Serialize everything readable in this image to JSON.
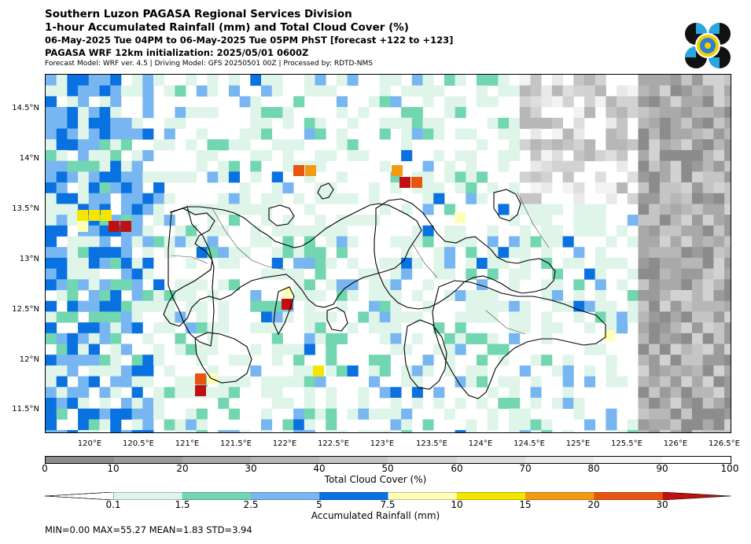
{
  "header": {
    "line1": "Southern Luzon PAGASA Regional Services Division",
    "line2": "1-hour Accumulated Rainfall (mm) and Total Cloud Cover (%)",
    "line3": "06-May-2025 Tue 04PM to 06-May-2025 Tue 05PM PhST [forecast +122 to +123]",
    "line4": "PAGASA WRF 12km initialization: 2025/05/01 0600Z",
    "line5": "Forecast Model: WRF ver. 4.5 | Driving Model: GFS 20250501 00Z | Processed by: RDTD-NMS"
  },
  "map": {
    "lat_labels": [
      "14.5°N",
      "14°N",
      "13.5°N",
      "13°N",
      "12.5°N",
      "12°N",
      "11.5°N"
    ],
    "lon_labels": [
      "120°E",
      "120.5°E",
      "121°E",
      "121.5°E",
      "122°E",
      "122.5°E",
      "123°E",
      "123.5°E",
      "124°E",
      "124.5°E",
      "125°E",
      "125.5°E",
      "126°E",
      "126.5°E"
    ]
  },
  "cloud_legend": {
    "ticks": [
      "0",
      "10",
      "20",
      "30",
      "40",
      "50",
      "60",
      "70",
      "80",
      "90",
      "100"
    ],
    "label": "Total Cloud Cover (%)",
    "colors": [
      "#8c8c8c",
      "#9b9b9b",
      "#a9a9a9",
      "#b7b7b7",
      "#c5c5c5",
      "#d2d2d2",
      "#dedede",
      "#e9e9e9",
      "#f3f3f3",
      "#ffffff"
    ]
  },
  "rain_legend": {
    "ticks": [
      "0.1",
      "1.5",
      "2.5",
      "5",
      "7.5",
      "10",
      "15",
      "20",
      "30"
    ],
    "label": "Accumulated Rainfall (mm)",
    "colors": [
      "#dff5ea",
      "#72d6b0",
      "#78b6f2",
      "#0a72e0",
      "#ffffb8",
      "#f5e600",
      "#f59a10",
      "#e85510",
      "#c01010"
    ]
  },
  "stats": "MIN=0.00   MAX=55.27   MEAN=1.83   STD=3.94"
}
